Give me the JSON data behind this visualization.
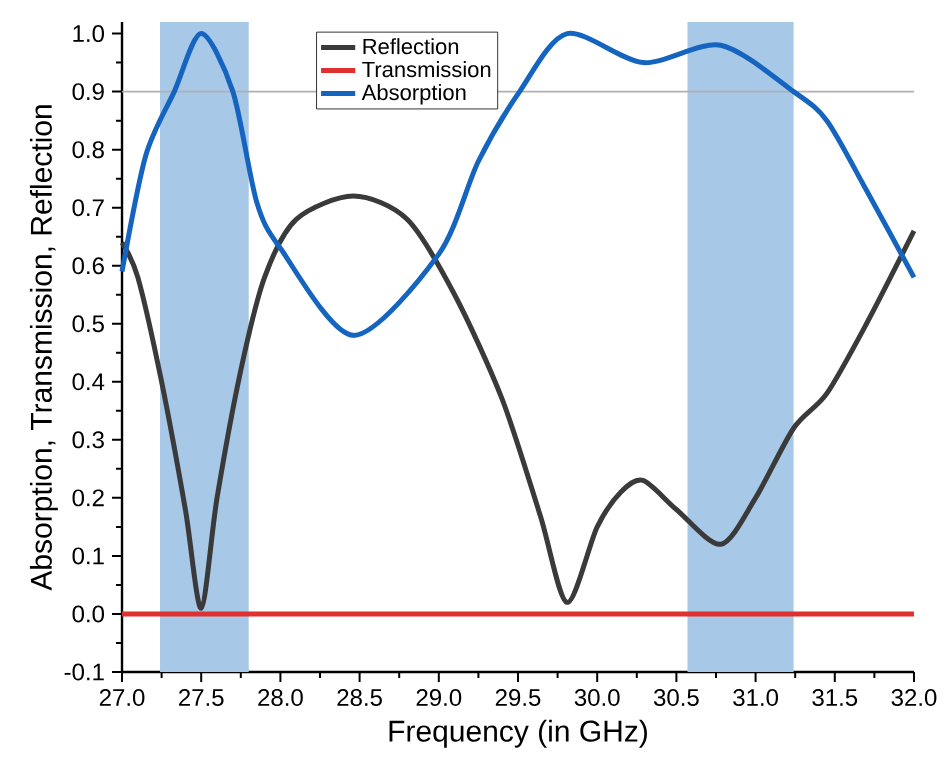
{
  "chart_data": {
    "type": "line",
    "xlabel": "Frequency (in GHz)",
    "ylabel": "Absorption, Transmission, Reflection",
    "xlim": [
      27.0,
      32.0
    ],
    "ylim": [
      -0.1,
      1.02
    ],
    "xticks": [
      {
        "value": 27.0,
        "label": "27.0"
      },
      {
        "value": 27.5,
        "label": "27.5"
      },
      {
        "value": 28.0,
        "label": "28.0"
      },
      {
        "value": 28.5,
        "label": "28.5"
      },
      {
        "value": 29.0,
        "label": "29.0"
      },
      {
        "value": 29.5,
        "label": "29.5"
      },
      {
        "value": 30.0,
        "label": "30.0"
      },
      {
        "value": 30.5,
        "label": "30.5"
      },
      {
        "value": 31.0,
        "label": "31.0"
      },
      {
        "value": 31.5,
        "label": "31.5"
      },
      {
        "value": 32.0,
        "label": "32.0"
      }
    ],
    "yticks": [
      {
        "value": -0.1,
        "label": "-0.1"
      },
      {
        "value": 0.0,
        "label": "0.0"
      },
      {
        "value": 0.1,
        "label": "0.1"
      },
      {
        "value": 0.2,
        "label": "0.2"
      },
      {
        "value": 0.3,
        "label": "0.3"
      },
      {
        "value": 0.4,
        "label": "0.4"
      },
      {
        "value": 0.5,
        "label": "0.5"
      },
      {
        "value": 0.6,
        "label": "0.6"
      },
      {
        "value": 0.7,
        "label": "0.7"
      },
      {
        "value": 0.8,
        "label": "0.8"
      },
      {
        "value": 0.9,
        "label": "0.9"
      },
      {
        "value": 1.0,
        "label": "1.0"
      }
    ],
    "series": [
      {
        "name": "Reflection",
        "color": "#3a3a3a",
        "x": [
          27.0,
          27.1,
          27.25,
          27.4,
          27.5,
          27.6,
          27.75,
          27.9,
          28.1,
          28.46,
          28.8,
          29.1,
          29.4,
          29.64,
          29.81,
          30.0,
          30.15,
          30.29,
          30.5,
          30.78,
          31.0,
          31.24,
          31.45,
          31.7,
          32.0
        ],
        "values": [
          0.64,
          0.58,
          0.4,
          0.18,
          0.01,
          0.2,
          0.42,
          0.58,
          0.68,
          0.72,
          0.68,
          0.55,
          0.37,
          0.17,
          0.02,
          0.15,
          0.21,
          0.23,
          0.18,
          0.12,
          0.2,
          0.32,
          0.38,
          0.5,
          0.66
        ]
      },
      {
        "name": "Transmission",
        "color": "#e03030",
        "x": [
          27.0,
          32.0
        ],
        "values": [
          0.0,
          0.0
        ]
      },
      {
        "name": "Absorption",
        "color": "#1565c0",
        "x": [
          27.0,
          27.15,
          27.33,
          27.5,
          27.7,
          27.85,
          28.0,
          28.46,
          29.0,
          29.25,
          29.51,
          29.81,
          30.29,
          30.78,
          31.24,
          31.45,
          31.7,
          32.0
        ],
        "values": [
          0.59,
          0.79,
          0.9,
          1.0,
          0.9,
          0.71,
          0.63,
          0.48,
          0.62,
          0.78,
          0.9,
          1.0,
          0.95,
          0.98,
          0.9,
          0.85,
          0.73,
          0.58
        ]
      }
    ],
    "bands": [
      {
        "axis": "x",
        "from": 27.24,
        "to": 27.8,
        "color": "#a8c8e8"
      },
      {
        "axis": "x",
        "from": 30.57,
        "to": 31.24,
        "color": "#a8c8e8"
      }
    ],
    "ref_lines": [
      {
        "axis": "y",
        "value": 0.9,
        "color": "#b0b0b0"
      }
    ],
    "legend": "top"
  }
}
